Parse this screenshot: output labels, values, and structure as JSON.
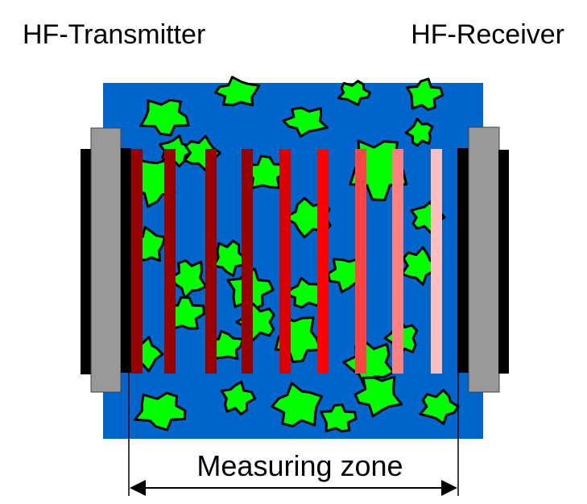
{
  "labels": {
    "transmitter": "HF-Transmitter",
    "receiver": "HF-Receiver",
    "measuring_zone": "Measuring zone"
  },
  "colors": {
    "medium": "#0066CC",
    "particles": "#00FF00",
    "electrode": "#999999",
    "electrode_backing": "#000000",
    "wave_fronts": [
      "#990000",
      "#990000",
      "#990000",
      "#990000",
      "#DD0000",
      "#FF0000",
      "#FF4444",
      "#FF8080",
      "#FFBFBF"
    ]
  }
}
